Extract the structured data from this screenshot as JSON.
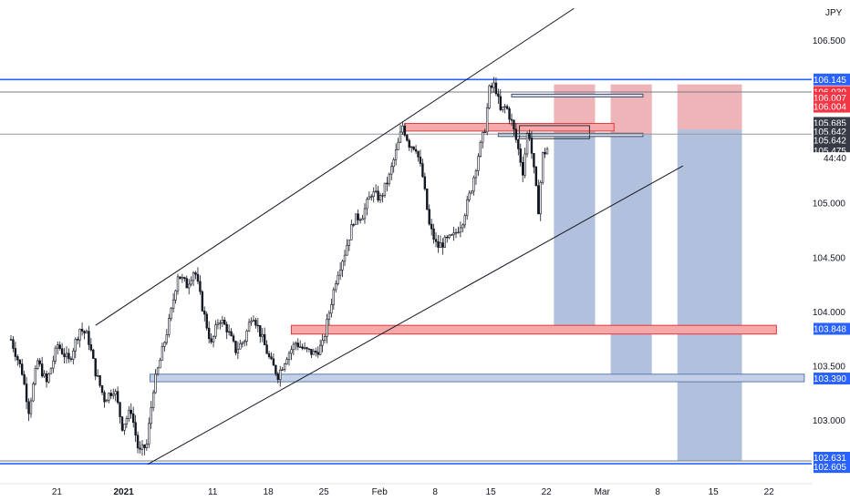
{
  "chart_data": {
    "type": "candlestick",
    "currency": "JPY",
    "y_axis": {
      "min": 102.58,
      "max": 106.85,
      "ticks": [
        "106.500",
        "105.000",
        "104.500",
        "104.000",
        "103.500",
        "103.000"
      ],
      "tick_values": [
        106.5,
        105.0,
        104.5,
        104.0,
        103.5,
        103.0
      ]
    },
    "x_axis": {
      "ticks": [
        {
          "label": "21",
          "index": 2,
          "bold": false
        },
        {
          "label": "2021",
          "index": 8,
          "bold": true
        },
        {
          "label": "11",
          "index": 16,
          "bold": false
        },
        {
          "label": "18",
          "index": 21,
          "bold": false
        },
        {
          "label": "25",
          "index": 26,
          "bold": false
        },
        {
          "label": "Feb",
          "index": 31,
          "bold": false
        },
        {
          "label": "8",
          "index": 36,
          "bold": false
        },
        {
          "label": "15",
          "index": 41,
          "bold": false
        },
        {
          "label": "22",
          "index": 46,
          "bold": false
        },
        {
          "label": "Mar",
          "index": 51,
          "bold": false
        },
        {
          "label": "8",
          "index": 56,
          "bold": false
        },
        {
          "label": "15",
          "index": 61,
          "bold": false
        },
        {
          "label": "22",
          "index": 66,
          "bold": false
        }
      ],
      "bars_visible": 73
    },
    "price_path": [
      [
        0,
        103.75
      ],
      [
        1,
        103.45
      ],
      [
        1.6,
        103.1
      ],
      [
        2.4,
        103.55
      ],
      [
        3.2,
        103.35
      ],
      [
        4.2,
        103.7
      ],
      [
        5.2,
        103.55
      ],
      [
        6.2,
        103.85
      ],
      [
        6.9,
        103.78
      ],
      [
        7.6,
        103.45
      ],
      [
        8.4,
        103.2
      ],
      [
        9.3,
        103.3
      ],
      [
        10.0,
        102.95
      ],
      [
        10.8,
        103.1
      ],
      [
        11.5,
        102.7
      ],
      [
        12.2,
        102.78
      ],
      [
        12.8,
        103.3
      ],
      [
        13.5,
        103.6
      ],
      [
        14.3,
        103.95
      ],
      [
        15.0,
        104.35
      ],
      [
        15.8,
        104.25
      ],
      [
        16.5,
        104.4
      ],
      [
        17.2,
        104.05
      ],
      [
        18.0,
        103.7
      ],
      [
        18.7,
        103.95
      ],
      [
        19.4,
        103.85
      ],
      [
        20.2,
        103.65
      ],
      [
        21.0,
        103.75
      ],
      [
        21.7,
        104.0
      ],
      [
        22.5,
        103.78
      ],
      [
        23.3,
        103.55
      ],
      [
        24.0,
        103.42
      ],
      [
        24.8,
        103.6
      ],
      [
        25.6,
        103.72
      ],
      [
        26.4,
        103.65
      ],
      [
        27.3,
        103.62
      ],
      [
        28.0,
        103.7
      ],
      [
        28.6,
        104.0
      ],
      [
        29.3,
        104.35
      ],
      [
        30.0,
        104.55
      ],
      [
        30.8,
        104.85
      ],
      [
        31.6,
        104.9
      ],
      [
        32.4,
        105.1
      ],
      [
        33.2,
        105.05
      ],
      [
        34.0,
        105.25
      ],
      [
        34.8,
        105.55
      ],
      [
        35.2,
        105.72
      ],
      [
        35.8,
        105.55
      ],
      [
        36.4,
        105.52
      ],
      [
        37.0,
        105.25
      ],
      [
        37.6,
        104.8
      ],
      [
        38.3,
        104.6
      ],
      [
        39.0,
        104.65
      ],
      [
        39.8,
        104.7
      ],
      [
        40.6,
        104.85
      ],
      [
        41.4,
        105.15
      ],
      [
        42.0,
        105.45
      ],
      [
        42.6,
        105.7
      ],
      [
        43.0,
        106.05
      ],
      [
        43.5,
        106.1
      ],
      [
        44.0,
        105.85
      ],
      [
        44.5,
        105.9
      ],
      [
        45.0,
        105.75
      ],
      [
        45.5,
        105.55
      ],
      [
        46.0,
        105.3
      ],
      [
        46.5,
        105.72
      ],
      [
        47.0,
        105.3
      ],
      [
        47.4,
        104.95
      ],
      [
        47.8,
        105.45
      ],
      [
        48.3,
        105.52
      ]
    ],
    "horizontal_lines": [
      {
        "price": 106.145,
        "color": "#2962ff",
        "width": 1.6
      },
      {
        "price": 106.03,
        "color": "#787b86",
        "width": 1
      },
      {
        "price": 105.642,
        "color": "#9598a1",
        "width": 1
      },
      {
        "price": 102.631,
        "color": "#787b86",
        "width": 1
      },
      {
        "price": 102.605,
        "color": "#2962ff",
        "width": 1.6
      }
    ],
    "trend_lines": [
      {
        "from": [
          7.6,
          103.88
        ],
        "to": [
          50.6,
          106.8
        ]
      },
      {
        "from": [
          12.3,
          102.6
        ],
        "to": [
          60.4,
          105.35
        ]
      }
    ],
    "zones": [
      {
        "kind": "supply",
        "x1": 35.4,
        "x2": 54.2,
        "p_top": 105.74,
        "p_bottom": 105.67
      },
      {
        "kind": "supply",
        "x1": 25.2,
        "x2": 68.8,
        "p_top": 103.88,
        "p_bottom": 103.8
      },
      {
        "kind": "demand",
        "x1": 12.5,
        "x2": 71.3,
        "p_top": 103.43,
        "p_bottom": 103.36
      },
      {
        "kind": "demand-outline",
        "x1": 45.0,
        "x2": 56.8,
        "p_top": 106.01,
        "p_bottom": 105.99
      },
      {
        "kind": "demand-outline",
        "x1": 43.8,
        "x2": 56.8,
        "p_top": 105.65,
        "p_bottom": 105.62
      },
      {
        "kind": "neutral-outline",
        "x1": 45.7,
        "x2": 52.0,
        "p_top": 105.72,
        "p_bottom": 105.6
      }
    ],
    "positions": [
      {
        "x1": 48.8,
        "x2": 52.5,
        "entry": 105.642,
        "stop": 106.1,
        "target": 103.848
      },
      {
        "x1": 53.9,
        "x2": 57.6,
        "entry": 105.642,
        "stop": 106.1,
        "target": 103.39
      },
      {
        "x1": 59.9,
        "x2": 65.7,
        "entry": 105.685,
        "stop": 106.1,
        "target": 102.631
      }
    ],
    "price_labels": [
      {
        "text": "106.145",
        "price": 106.145,
        "bg": "#2962ff",
        "fg": "#ffffff"
      },
      {
        "text": "106.030",
        "price": 106.03,
        "bg": "#f23645",
        "fg": "#ffffff"
      },
      {
        "text": "106.007",
        "price": 105.975,
        "bg": "#f23645",
        "fg": "#ffffff"
      },
      {
        "text": "106.004",
        "price": 105.895,
        "bg": "#f23645",
        "fg": "#ffffff"
      },
      {
        "text": "105.685",
        "price": 105.745,
        "bg": "#363a45",
        "fg": "#ffffff"
      },
      {
        "text": "105.642",
        "price": 105.665,
        "bg": "#363a45",
        "fg": "#ffffff"
      },
      {
        "text": "105.642",
        "price": 105.585,
        "bg": "#363a45",
        "fg": "#ffffff"
      },
      {
        "text": "105.475",
        "price": 105.49,
        "bg": "#363a45",
        "fg": "#ffffff"
      },
      {
        "text": "44:40",
        "price": 105.42,
        "bg": "#ffffff",
        "fg": "#131722"
      },
      {
        "text": "103.848",
        "price": 103.848,
        "bg": "#2962ff",
        "fg": "#ffffff"
      },
      {
        "text": "103.390",
        "price": 103.39,
        "bg": "#2962ff",
        "fg": "#ffffff"
      },
      {
        "text": "102.631",
        "price": 102.66,
        "bg": "#2962ff",
        "fg": "#ffffff"
      },
      {
        "text": "102.605",
        "price": 102.575,
        "bg": "#2962ff",
        "fg": "#ffffff"
      }
    ],
    "colors": {
      "candle": "#131722",
      "line": "#131722",
      "supply_fill": "#f7a9a9",
      "supply_stroke": "#e0393e",
      "demand_fill": "#c5cfe6",
      "demand_stroke": "#5b7bb8",
      "stop_fill": "#eca7ac",
      "target_fill": "#a9b9d8",
      "axis_text": "#131722"
    }
  }
}
